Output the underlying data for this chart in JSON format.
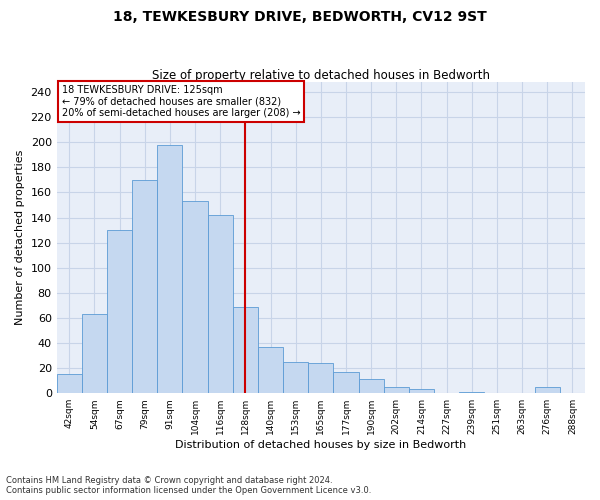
{
  "title": "18, TEWKESBURY DRIVE, BEDWORTH, CV12 9ST",
  "subtitle": "Size of property relative to detached houses in Bedworth",
  "xlabel": "Distribution of detached houses by size in Bedworth",
  "ylabel": "Number of detached properties",
  "categories": [
    "42sqm",
    "54sqm",
    "67sqm",
    "79sqm",
    "91sqm",
    "104sqm",
    "116sqm",
    "128sqm",
    "140sqm",
    "153sqm",
    "165sqm",
    "177sqm",
    "190sqm",
    "202sqm",
    "214sqm",
    "227sqm",
    "239sqm",
    "251sqm",
    "263sqm",
    "276sqm",
    "288sqm"
  ],
  "values": [
    15,
    63,
    130,
    170,
    198,
    153,
    142,
    69,
    37,
    25,
    24,
    17,
    11,
    5,
    3,
    0,
    1,
    0,
    0,
    5
  ],
  "bar_color": "#c5d8f0",
  "bar_edge_color": "#5b9bd5",
  "vline_x": 7.0,
  "annotation_title": "18 TEWKESBURY DRIVE: 125sqm",
  "annotation_line1": "← 79% of detached houses are smaller (832)",
  "annotation_line2": "20% of semi-detached houses are larger (208) →",
  "annotation_box_color": "#ffffff",
  "annotation_box_edge_color": "#cc0000",
  "vline_color": "#cc0000",
  "grid_color": "#c8d4e8",
  "background_color": "#e8eef8",
  "footer_line1": "Contains HM Land Registry data © Crown copyright and database right 2024.",
  "footer_line2": "Contains public sector information licensed under the Open Government Licence v3.0.",
  "ylim": [
    0,
    248
  ],
  "yticks": [
    0,
    20,
    40,
    60,
    80,
    100,
    120,
    140,
    160,
    180,
    200,
    220,
    240
  ]
}
